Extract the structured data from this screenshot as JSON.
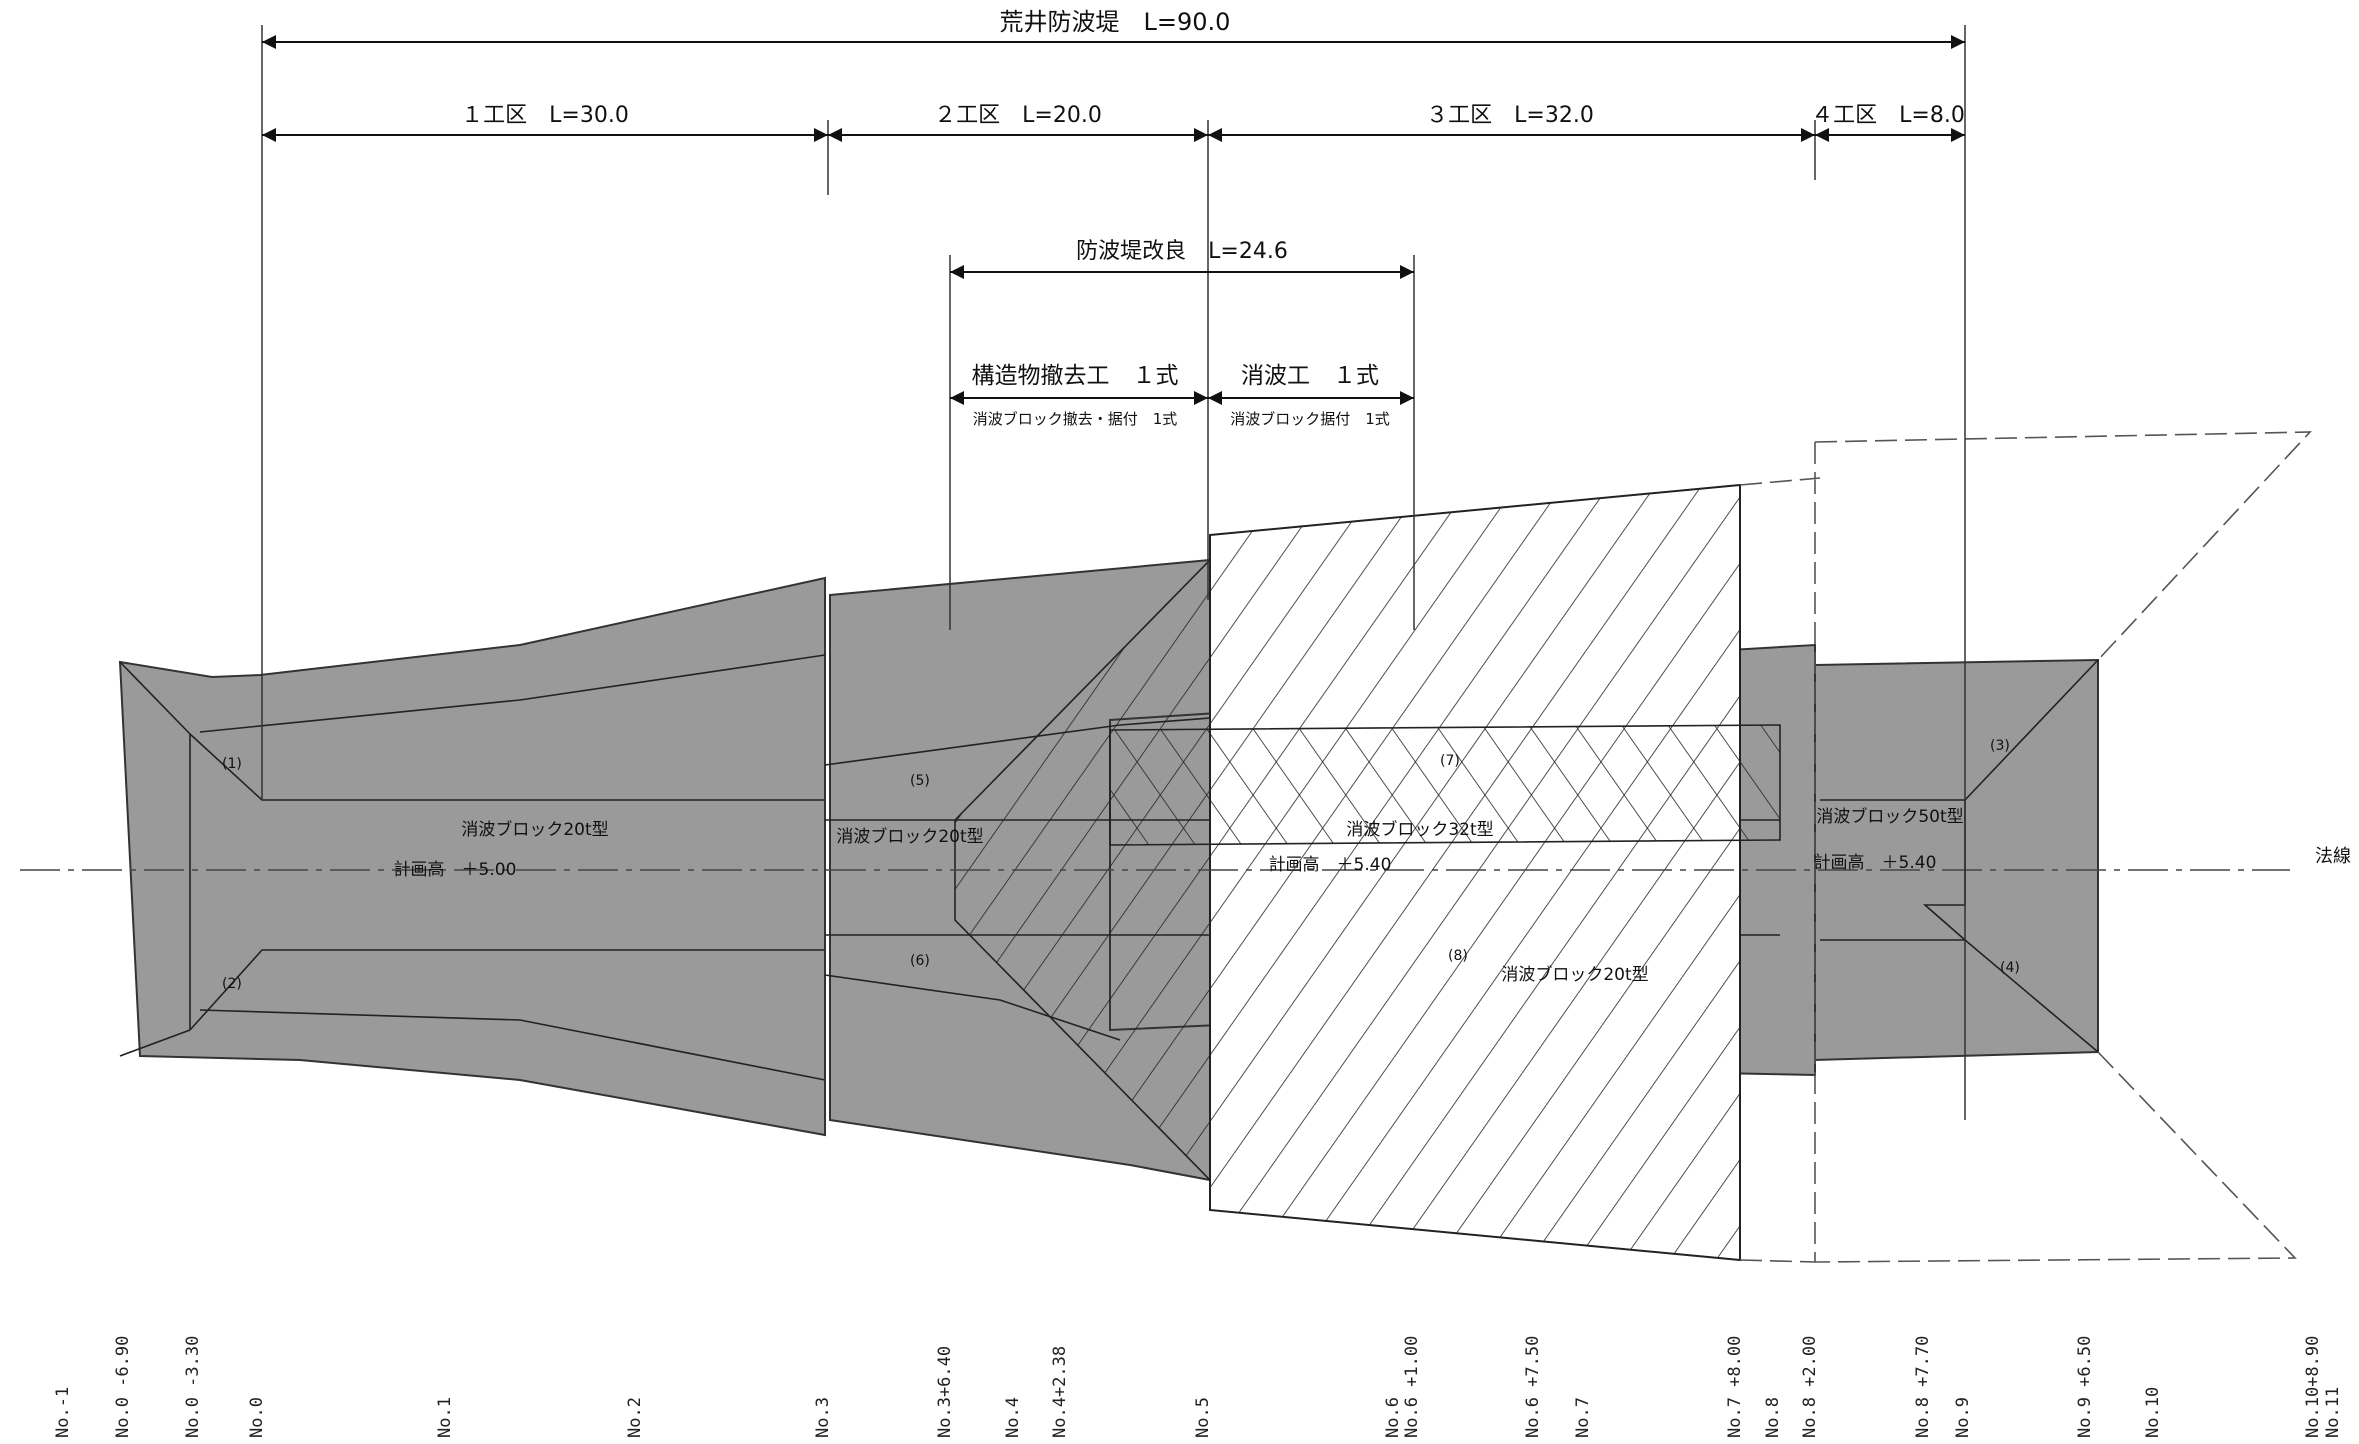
{
  "dimensions": {
    "total": "荒井防波堤　L=90.0",
    "section1": "１工区　L=30.0",
    "section2": "２工区　L=20.0",
    "section3": "３工区　L=32.0",
    "section4": "４工区　L=8.0",
    "improvement": "防波堤改良　L=24.6"
  },
  "works": {
    "removal_title": "構造物撤去工　１式",
    "removal_sub": "消波ブロック撤去・据付　1式",
    "wave_title": "消波工　１式",
    "wave_sub": "消波ブロック据付　1式"
  },
  "blocks": {
    "b20_left": "消波ブロック20t型",
    "b20_mid": "消波ブロック20t型",
    "b32": "消波ブロック32t型",
    "b50": "消波ブロック50t型",
    "b20_right": "消波ブロック20t型"
  },
  "heights": {
    "h1": "計画高　＋5.00",
    "h2": "計画高　＋5.40",
    "h3": "計画高　＋5.40"
  },
  "legal_line": "法線",
  "points": [
    "(1)",
    "(2)",
    "(3)",
    "(4)",
    "(5)",
    "(6)",
    "(7)",
    "(8)"
  ],
  "stations": [
    "No.-1",
    "No.0 -6.90",
    "No.0 -3.30",
    "No.0",
    "No.1",
    "No.2",
    "No.3",
    "No.3+6.40",
    "No.4",
    "No.4+2.38",
    "No.5",
    "No.6",
    "No.6 +1.00",
    "No.6 +7.50",
    "No.7",
    "No.7 +8.00",
    "No.8",
    "No.8 +2.00",
    "No.8 +7.70",
    "No.9",
    "No.9 +6.50",
    "No.10",
    "No.10+8.90",
    "No.11"
  ]
}
